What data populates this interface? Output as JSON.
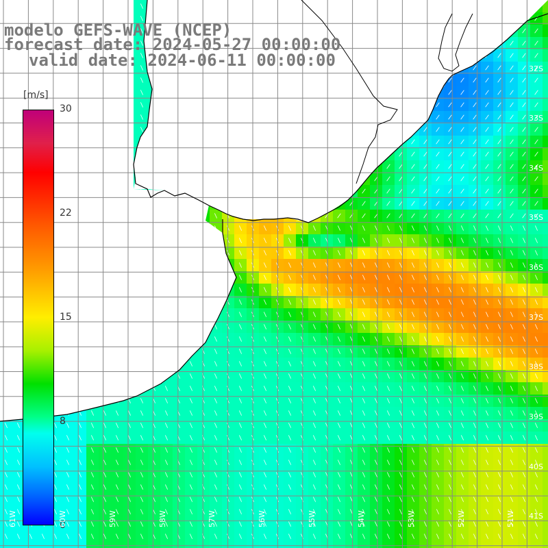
{
  "title": {
    "line1": "modelo GEFS-WAVE (NCEP)",
    "line2": "forecast date: 2024-05-27 00:00:00",
    "line3": "valid date: 2024-06-11 00:00:00"
  },
  "colorbar": {
    "unit": "[m/s]",
    "ticks": [
      "30",
      "22",
      "15",
      "8",
      "0"
    ],
    "colors": [
      "#c0007a",
      "#ff0000",
      "#ff9900",
      "#ffee00",
      "#00e000",
      "#00ffee",
      "#0000ff"
    ]
  },
  "lat_labels": [
    "32S",
    "33S",
    "34S",
    "35S",
    "36S",
    "37S",
    "38S",
    "39S",
    "40S",
    "41S"
  ],
  "lon_labels": [
    "61W",
    "60W",
    "59W",
    "58W",
    "57W",
    "56W",
    "55W",
    "54W",
    "53W",
    "52W",
    "51W"
  ],
  "colors": {
    "land": "#ffffff",
    "grid": "#888888",
    "coastline": "#000000",
    "arrows": "#ffffff"
  }
}
